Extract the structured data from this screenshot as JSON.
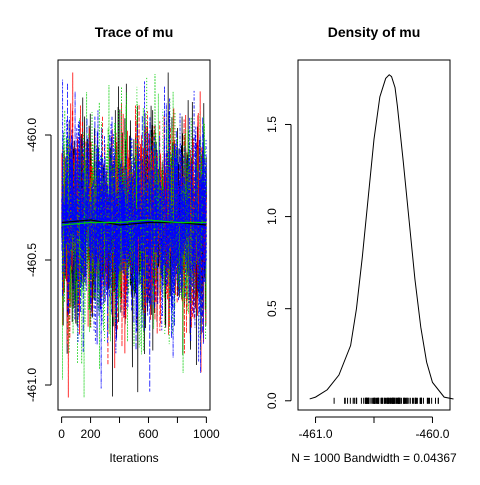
{
  "chart_data": [
    {
      "type": "line",
      "title": "Trace of mu",
      "xlabel": "Iterations",
      "ylabel": "",
      "xlim": [
        -25,
        1025
      ],
      "ylim": [
        -461.1,
        -459.7
      ],
      "xticks": [
        0,
        200,
        400,
        600,
        800,
        1000
      ],
      "xtick_labels": [
        "0",
        "200",
        "",
        "600",
        "",
        "1000"
      ],
      "yticks": [
        -461.0,
        -460.5,
        -460.0
      ],
      "ytick_labels": [
        "-461.0",
        "-460.5",
        "-460.0"
      ],
      "n_iterations": 1000,
      "center": -460.35,
      "spread_sd": 0.2,
      "grid": false,
      "series": [
        {
          "color": "#000000",
          "dash": ""
        },
        {
          "color": "#ff0000",
          "dash": "4,2"
        },
        {
          "color": "#00cd00",
          "dash": "1,2"
        },
        {
          "color": "#0000ff",
          "dash": "3,2,1,2"
        }
      ],
      "mean_lines": [
        {
          "color": "#000000",
          "values": [
            -460.35,
            -460.34,
            -460.36,
            -460.35,
            -460.35,
            -460.36
          ]
        },
        {
          "color": "#00cd00",
          "values": [
            -460.36,
            -460.35,
            -460.35,
            -460.34,
            -460.35,
            -460.35
          ]
        }
      ]
    },
    {
      "type": "area",
      "title": "Density of mu",
      "xlabel": "N = 1000   Bandwidth = 0.04367",
      "ylabel": "",
      "xlim": [
        -461.15,
        -459.85
      ],
      "ylim": [
        -0.05,
        1.85
      ],
      "xticks": [
        -461.0,
        -460.5,
        -460.0
      ],
      "xtick_labels": [
        "-461.0",
        "",
        "-460.0"
      ],
      "yticks": [
        0.0,
        0.5,
        1.0,
        1.5
      ],
      "ytick_labels": [
        "0.0",
        "0.5",
        "1.0",
        "1.5"
      ],
      "grid": false,
      "curve_x": [
        -461.05,
        -461.0,
        -460.9,
        -460.8,
        -460.7,
        -460.65,
        -460.6,
        -460.55,
        -460.5,
        -460.45,
        -460.4,
        -460.37,
        -460.35,
        -460.32,
        -460.3,
        -460.25,
        -460.2,
        -460.15,
        -460.1,
        -460.05,
        -460.0,
        -459.9,
        -459.82
      ],
      "curve_y": [
        0.01,
        0.02,
        0.06,
        0.14,
        0.3,
        0.5,
        0.78,
        1.1,
        1.42,
        1.65,
        1.75,
        1.77,
        1.76,
        1.7,
        1.6,
        1.3,
        0.98,
        0.66,
        0.4,
        0.21,
        0.1,
        0.02,
        0.01
      ],
      "rug": {
        "mean": -460.35,
        "sd": 0.2,
        "n": 120
      }
    }
  ]
}
